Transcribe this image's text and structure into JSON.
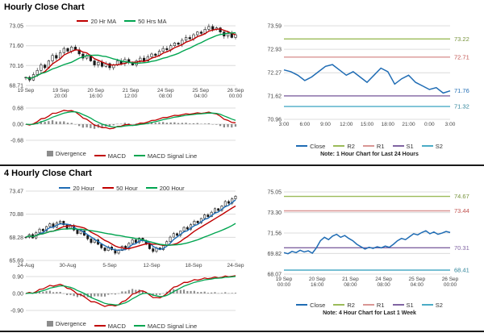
{
  "sections": [
    {
      "title": "Hourly Close Chart"
    },
    {
      "title": "4 Hourly Close Chart"
    }
  ],
  "chart_data": [
    {
      "type": "candlestick",
      "title": "Hourly Close Chart",
      "ylim": [
        68.71,
        73.05
      ],
      "y_ticks": [
        73.05,
        71.6,
        70.16,
        68.71
      ],
      "x_labels": [
        "19 Sep",
        "19 Sep\n20:00",
        "20 Sep\n16:00",
        "21 Sep\n12:00",
        "24 Sep\n08:00",
        "25 Sep\n04:00",
        "26 Sep\n00:00"
      ],
      "close": [
        69.3,
        69.1,
        69.5,
        69.8,
        70.2,
        70.0,
        70.5,
        70.9,
        70.7,
        71.1,
        71.4,
        71.2,
        71.5,
        71.3,
        71.0,
        70.7,
        70.9,
        70.5,
        70.2,
        70.4,
        70.1,
        70.3,
        70.0,
        70.2,
        70.5,
        70.3,
        70.6,
        70.4,
        70.2,
        70.5,
        70.7,
        70.5,
        70.8,
        71.0,
        70.9,
        71.2,
        71.4,
        71.3,
        71.6,
        71.8,
        71.7,
        72.0,
        72.2,
        72.1,
        72.4,
        72.6,
        72.5,
        72.8,
        73.0,
        72.8,
        72.9,
        72.6,
        72.3,
        72.5,
        72.2,
        72.4
      ],
      "series": [
        {
          "name": "20 Hr MA",
          "color": "#C00000",
          "window": 5
        },
        {
          "name": "50 Hrs MA",
          "color": "#00A550",
          "window": 13
        }
      ],
      "legend": [
        {
          "label": "20 Hr MA",
          "color": "#C00000"
        },
        {
          "label": "50 Hrs MA",
          "color": "#00A550"
        }
      ]
    },
    {
      "type": "macd",
      "source": 0,
      "ylim": [
        -0.68,
        0.68
      ],
      "y_ticks": [
        0.68,
        0.0,
        -0.68
      ],
      "fast": 5,
      "slow": 13,
      "signal": 5,
      "macd_color": "#C00000",
      "signal_color": "#00A550",
      "divergence_color": "#8C8C8C",
      "legend": [
        {
          "label": "Divergence",
          "color": "#8C8C8C",
          "shape": "bar"
        },
        {
          "label": "MACD",
          "color": "#C00000"
        },
        {
          "label": "MACD Signal Line",
          "color": "#00A550"
        }
      ]
    },
    {
      "type": "line-levels",
      "ylim": [
        70.96,
        73.59
      ],
      "y_ticks": [
        73.59,
        72.93,
        72.27,
        71.62,
        70.96
      ],
      "x_labels": [
        "3:00",
        "6:00",
        "9:00",
        "12:00",
        "15:00",
        "18:00",
        "21:00",
        "0:00",
        "3:00"
      ],
      "close": [
        72.35,
        72.3,
        72.2,
        72.05,
        72.15,
        72.3,
        72.45,
        72.5,
        72.35,
        72.2,
        72.3,
        72.15,
        72.0,
        72.2,
        72.4,
        72.3,
        71.95,
        72.1,
        72.2,
        72.0,
        71.9,
        71.8,
        71.85,
        71.7,
        71.76
      ],
      "close_color": "#1F6CB4",
      "levels": [
        {
          "name": "R2",
          "value": 73.22,
          "color": "#9BBB59"
        },
        {
          "name": "R1",
          "value": 72.71,
          "color": "#D99694"
        },
        {
          "name": "S1",
          "value": 71.62,
          "color": "#8064A2"
        },
        {
          "name": "S2",
          "value": 71.32,
          "color": "#4BACC6"
        }
      ],
      "right_labels": [
        {
          "text": "73.22",
          "value": 73.22,
          "color": "#77933C"
        },
        {
          "text": "72.71",
          "value": 72.71,
          "color": "#C0504D"
        },
        {
          "text": "71.76",
          "value": 71.76,
          "color": "#1F6CB4"
        },
        {
          "text": "71.32",
          "value": 71.32,
          "color": "#31859B"
        }
      ],
      "legend": [
        {
          "label": "Close",
          "color": "#1F6CB4"
        },
        {
          "label": "R2",
          "color": "#9BBB59"
        },
        {
          "label": "R1",
          "color": "#D99694"
        },
        {
          "label": "S1",
          "color": "#8064A2"
        },
        {
          "label": "S2",
          "color": "#4BACC6"
        }
      ],
      "note": "Note: 1 Hour Chart for Last 24 Hours"
    },
    {
      "type": "candlestick",
      "title": "4 Hourly Close Chart",
      "ylim": [
        65.69,
        73.47
      ],
      "y_ticks": [
        73.47,
        70.88,
        68.28,
        65.69
      ],
      "x_labels": [
        "24-Aug",
        "30-Aug",
        "5-Sep",
        "12-Sep",
        "18-Sep",
        "24-Sep"
      ],
      "close": [
        68.3,
        68.6,
        68.2,
        68.8,
        69.2,
        69.0,
        69.5,
        69.8,
        69.4,
        69.9,
        70.1,
        69.7,
        69.3,
        69.6,
        69.1,
        68.7,
        69.0,
        68.5,
        68.1,
        67.7,
        68.0,
        67.5,
        67.1,
        66.8,
        67.2,
        66.9,
        66.5,
        66.8,
        67.3,
        67.0,
        67.6,
        68.0,
        67.7,
        68.2,
        67.9,
        67.5,
        67.0,
        66.7,
        67.1,
        66.9,
        67.4,
        67.8,
        68.3,
        68.7,
        68.5,
        69.0,
        69.4,
        69.2,
        69.7,
        70.1,
        69.9,
        70.4,
        70.8,
        70.6,
        71.1,
        71.5,
        71.3,
        71.8,
        72.3,
        72.1,
        72.6,
        72.9
      ],
      "series": [
        {
          "name": "20 Hour",
          "color": "#1F6CB4",
          "window": 4
        },
        {
          "name": "50 Hour",
          "color": "#C00000",
          "window": 9
        },
        {
          "name": "200 Hour",
          "color": "#00A550",
          "window": 25
        }
      ],
      "legend": [
        {
          "label": "20 Hour",
          "color": "#1F6CB4"
        },
        {
          "label": "50 Hour",
          "color": "#C00000"
        },
        {
          "label": "200 Hour",
          "color": "#00A550"
        }
      ]
    },
    {
      "type": "macd",
      "source": 3,
      "ylim": [
        -0.9,
        0.9
      ],
      "y_ticks": [
        0.9,
        0.0,
        -0.9
      ],
      "fast": 5,
      "slow": 13,
      "signal": 5,
      "macd_color": "#C00000",
      "signal_color": "#00A550",
      "divergence_color": "#8C8C8C",
      "legend": [
        {
          "label": "Divergence",
          "color": "#8C8C8C",
          "shape": "bar"
        },
        {
          "label": "MACD",
          "color": "#C00000"
        },
        {
          "label": "MACD Signal Line",
          "color": "#00A550"
        }
      ]
    },
    {
      "type": "line-levels",
      "ylim": [
        68.07,
        75.05
      ],
      "y_ticks": [
        75.05,
        73.3,
        71.56,
        69.82,
        68.07
      ],
      "x_labels": [
        "19 Sep\n00:00",
        "20 Sep\n16:00",
        "21 Sep\n08:00",
        "24 Sep\n08:00",
        "25 Sep\n04:00",
        "26 Sep\n00:00"
      ],
      "close": [
        69.9,
        69.8,
        70.0,
        69.9,
        70.1,
        69.95,
        70.05,
        69.85,
        70.3,
        70.9,
        71.2,
        71.0,
        71.3,
        71.45,
        71.2,
        71.35,
        71.1,
        70.9,
        70.6,
        70.4,
        70.2,
        70.35,
        70.25,
        70.4,
        70.3,
        70.45,
        70.35,
        70.6,
        70.9,
        71.1,
        71.0,
        71.25,
        71.5,
        71.4,
        71.6,
        71.75,
        71.5,
        71.65,
        71.45,
        71.55,
        71.7,
        71.6
      ],
      "close_color": "#1F6CB4",
      "levels": [
        {
          "name": "R2",
          "value": 74.67,
          "color": "#9BBB59"
        },
        {
          "name": "R1",
          "value": 73.44,
          "color": "#D99694"
        },
        {
          "name": "S1",
          "value": 70.31,
          "color": "#8064A2"
        },
        {
          "name": "S2",
          "value": 68.41,
          "color": "#4BACC6"
        }
      ],
      "right_labels": [
        {
          "text": "74.67",
          "value": 74.67,
          "color": "#77933C"
        },
        {
          "text": "73.44",
          "value": 73.44,
          "color": "#C0504D"
        },
        {
          "text": "70.31",
          "value": 70.31,
          "color": "#8064A2"
        },
        {
          "text": "68.41",
          "value": 68.41,
          "color": "#31859B"
        }
      ],
      "legend": [
        {
          "label": "Close",
          "color": "#1F6CB4"
        },
        {
          "label": "R2",
          "color": "#9BBB59"
        },
        {
          "label": "R1",
          "color": "#D99694"
        },
        {
          "label": "S1",
          "color": "#8064A2"
        },
        {
          "label": "S2",
          "color": "#4BACC6"
        }
      ],
      "note": "Note: 4 Hour Chart for Last 1 Week"
    }
  ]
}
